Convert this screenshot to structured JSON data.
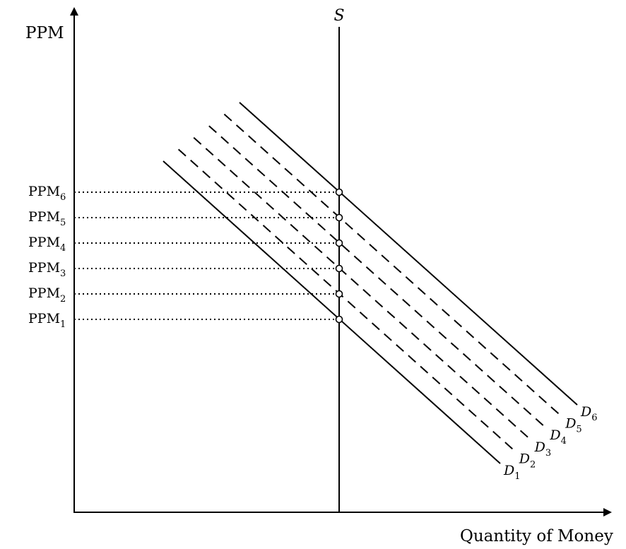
{
  "y_axis_label": "PPM",
  "x_axis_label": "Quantity of Money",
  "supply_label": "S",
  "price_levels": [
    {
      "base": "PPM",
      "sub": "1"
    },
    {
      "base": "PPM",
      "sub": "2"
    },
    {
      "base": "PPM",
      "sub": "3"
    },
    {
      "base": "PPM",
      "sub": "4"
    },
    {
      "base": "PPM",
      "sub": "5"
    },
    {
      "base": "PPM",
      "sub": "6"
    }
  ],
  "demand_curves": [
    {
      "base": "D",
      "sub": "1"
    },
    {
      "base": "D",
      "sub": "2"
    },
    {
      "base": "D",
      "sub": "3"
    },
    {
      "base": "D",
      "sub": "4"
    },
    {
      "base": "D",
      "sub": "5"
    },
    {
      "base": "D",
      "sub": "6"
    }
  ]
}
